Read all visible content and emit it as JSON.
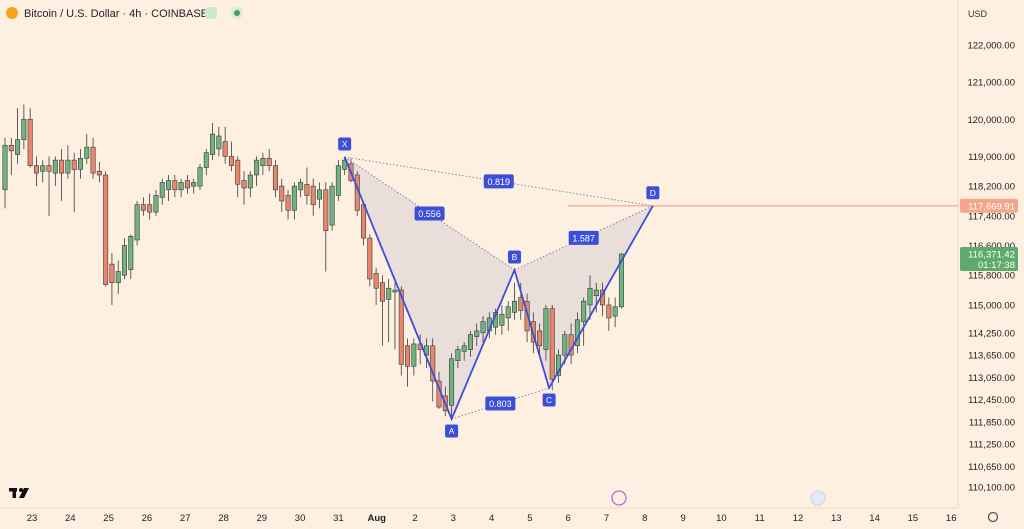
{
  "header": {
    "symbol": "Bitcoin / U.S. Dollar · 4h · COINBASE",
    "currency": "USD"
  },
  "chart_data": {
    "type": "candlestick",
    "up_color": "#6fb47f",
    "down_color": "#e8866c",
    "ohlc": [
      [
        118100,
        119500,
        117600,
        119300
      ],
      [
        119300,
        119500,
        118500,
        119150
      ],
      [
        119050,
        120300,
        118800,
        119450
      ],
      [
        119450,
        120400,
        119200,
        120000
      ],
      [
        120000,
        120300,
        118700,
        118750
      ],
      [
        118750,
        119000,
        118200,
        118550
      ],
      [
        118600,
        118900,
        118300,
        118750
      ],
      [
        118750,
        119000,
        117400,
        118600
      ],
      [
        118550,
        119000,
        118200,
        118900
      ],
      [
        118900,
        119200,
        117800,
        118550
      ],
      [
        118550,
        119300,
        118400,
        118900
      ],
      [
        118900,
        119100,
        117500,
        118650
      ],
      [
        118650,
        119200,
        118400,
        118950
      ],
      [
        118950,
        119600,
        118800,
        119250
      ],
      [
        119250,
        119500,
        118400,
        118550
      ],
      [
        118600,
        118850,
        118300,
        118500
      ],
      [
        118500,
        118600,
        115500,
        115550
      ],
      [
        116100,
        116400,
        115000,
        115600
      ],
      [
        115600,
        116200,
        115300,
        115900
      ],
      [
        115800,
        116800,
        115700,
        116600
      ],
      [
        115950,
        116900,
        115700,
        116850
      ],
      [
        116750,
        117800,
        116600,
        117700
      ],
      [
        117700,
        117900,
        117400,
        117550
      ],
      [
        117700,
        118000,
        117300,
        117500
      ],
      [
        117500,
        118100,
        117400,
        117950
      ],
      [
        117900,
        118400,
        117700,
        118300
      ],
      [
        118100,
        118500,
        117800,
        118350
      ],
      [
        118350,
        118500,
        117900,
        118100
      ],
      [
        118100,
        118400,
        117900,
        118300
      ],
      [
        118350,
        118500,
        118000,
        118150
      ],
      [
        118200,
        118400,
        118000,
        118300
      ],
      [
        118200,
        118800,
        118100,
        118700
      ],
      [
        118700,
        119200,
        118500,
        119100
      ],
      [
        119050,
        119900,
        118900,
        119600
      ],
      [
        119200,
        119800,
        119000,
        119550
      ],
      [
        119400,
        119800,
        118800,
        119000
      ],
      [
        119000,
        119400,
        118600,
        118750
      ],
      [
        118900,
        119000,
        117900,
        118250
      ],
      [
        118350,
        118600,
        117700,
        118150
      ],
      [
        118150,
        118600,
        117900,
        118500
      ],
      [
        118500,
        119000,
        118200,
        118900
      ],
      [
        118750,
        119100,
        118500,
        118950
      ],
      [
        118950,
        119200,
        118600,
        118750
      ],
      [
        118750,
        118900,
        117900,
        118100
      ],
      [
        118200,
        118400,
        117500,
        117800
      ],
      [
        117950,
        118100,
        117300,
        117550
      ],
      [
        117550,
        118300,
        117300,
        118200
      ],
      [
        118100,
        118400,
        117900,
        118300
      ],
      [
        118250,
        118700,
        117700,
        117950
      ],
      [
        118200,
        118400,
        117400,
        117700
      ],
      [
        117850,
        118300,
        117600,
        118100
      ],
      [
        118100,
        118300,
        115900,
        117000
      ],
      [
        117150,
        118300,
        117000,
        118200
      ],
      [
        117950,
        118900,
        117800,
        118750
      ],
      [
        118650,
        119000,
        118500,
        118900
      ],
      [
        118800,
        118950,
        118300,
        118350
      ],
      [
        118500,
        118600,
        117400,
        117550
      ],
      [
        117700,
        117800,
        116600,
        116800
      ],
      [
        116800,
        116900,
        115500,
        115700
      ],
      [
        115850,
        116000,
        115000,
        115450
      ],
      [
        115600,
        115800,
        113900,
        115100
      ],
      [
        115150,
        115700,
        114000,
        115450
      ],
      [
        115350,
        115600,
        113800,
        115400
      ],
      [
        115400,
        115500,
        113100,
        113400
      ],
      [
        113900,
        114100,
        112800,
        113350
      ],
      [
        113350,
        114100,
        113100,
        113950
      ],
      [
        113950,
        114200,
        113400,
        113800
      ],
      [
        113650,
        114100,
        113300,
        113900
      ],
      [
        113900,
        114100,
        112400,
        112950
      ],
      [
        112950,
        113200,
        112200,
        112250
      ],
      [
        112550,
        112800,
        112000,
        112150
      ],
      [
        112300,
        113700,
        112000,
        113550
      ],
      [
        113500,
        113900,
        113300,
        113800
      ],
      [
        113750,
        114000,
        113500,
        113900
      ],
      [
        113800,
        114300,
        113600,
        114200
      ],
      [
        114150,
        114500,
        113900,
        114300
      ],
      [
        114250,
        114700,
        114000,
        114550
      ],
      [
        114300,
        114800,
        114100,
        114650
      ],
      [
        114400,
        114900,
        114200,
        114800
      ],
      [
        114450,
        115000,
        114200,
        114750
      ],
      [
        114650,
        115100,
        114300,
        114950
      ],
      [
        114800,
        115600,
        114600,
        115100
      ],
      [
        115200,
        115600,
        114600,
        114850
      ],
      [
        115100,
        115300,
        114000,
        114300
      ],
      [
        114550,
        114800,
        113700,
        114000
      ],
      [
        114300,
        114500,
        113600,
        113900
      ],
      [
        113800,
        115000,
        113500,
        114900
      ],
      [
        114900,
        115000,
        112700,
        113000
      ],
      [
        113100,
        113800,
        112900,
        113650
      ],
      [
        113650,
        114300,
        113400,
        114200
      ],
      [
        114200,
        114500,
        113400,
        113650
      ],
      [
        113900,
        114800,
        113700,
        114600
      ],
      [
        114550,
        115200,
        113900,
        115100
      ],
      [
        115000,
        115800,
        114600,
        115450
      ],
      [
        115250,
        115600,
        114800,
        115400
      ],
      [
        115400,
        115600,
        114700,
        115000
      ],
      [
        115000,
        115200,
        114300,
        114650
      ],
      [
        114700,
        115200,
        114400,
        114950
      ],
      [
        114950,
        116400,
        114900,
        116371.42
      ]
    ],
    "ylim": [
      109532,
      123212
    ],
    "yticks": [
      {
        "value": 122000,
        "label": "122,000.00"
      },
      {
        "value": 121000,
        "label": "121,000.00"
      },
      {
        "value": 120000,
        "label": "120,000.00"
      },
      {
        "value": 119000,
        "label": "119,000.00"
      },
      {
        "value": 118200,
        "label": "118,200.00"
      },
      {
        "value": 117400,
        "label": "117,400.00"
      },
      {
        "value": 116600,
        "label": "116,600.00"
      },
      {
        "value": 115800,
        "label": "115,800.00"
      },
      {
        "value": 115000,
        "label": "115,000.00"
      },
      {
        "value": 114250,
        "label": "114,250.00"
      },
      {
        "value": 113650,
        "label": "113,650.00"
      },
      {
        "value": 113050,
        "label": "113,050.00"
      },
      {
        "value": 112450,
        "label": "112,450.00"
      },
      {
        "value": 111850,
        "label": "111,850.00"
      },
      {
        "value": 111250,
        "label": "111,250.00"
      },
      {
        "value": 110650,
        "label": "110,650.00"
      },
      {
        "value": 110100,
        "label": "110,100.00"
      }
    ],
    "x_labels": [
      "23",
      "24",
      "25",
      "26",
      "27",
      "28",
      "29",
      "30",
      "31",
      "Aug",
      "2",
      "3",
      "4",
      "5",
      "6",
      "7",
      "8",
      "9",
      "10",
      "11",
      "12",
      "13",
      "14",
      "15",
      "16"
    ],
    "pattern": {
      "color": "#3b4fd8",
      "points": [
        {
          "label": "X",
          "candle": 54,
          "value": 118984
        },
        {
          "label": "A",
          "candle": 71,
          "value": 111928
        },
        {
          "label": "B",
          "candle": 81,
          "value": 115941
        },
        {
          "label": "C",
          "candle": 86.5,
          "value": 112763
        },
        {
          "label": "D",
          "candle": 103,
          "value": 117670
        }
      ],
      "ratios": [
        {
          "value": 0.819,
          "from": 0,
          "to": 4
        },
        {
          "value": 0.556,
          "from": 0,
          "to": 2
        },
        {
          "value": 1.587,
          "from": 2,
          "to": 4
        },
        {
          "value": 0.803,
          "from": 1,
          "to": 3
        }
      ]
    },
    "price_lines": [
      {
        "value": 117669.91,
        "label": "117,669.91",
        "color": "#f4a68c"
      }
    ],
    "last_price": {
      "value": 116371.42,
      "label": "116,371.42",
      "countdown": "01:17:38",
      "color": "#5ea96c"
    }
  }
}
